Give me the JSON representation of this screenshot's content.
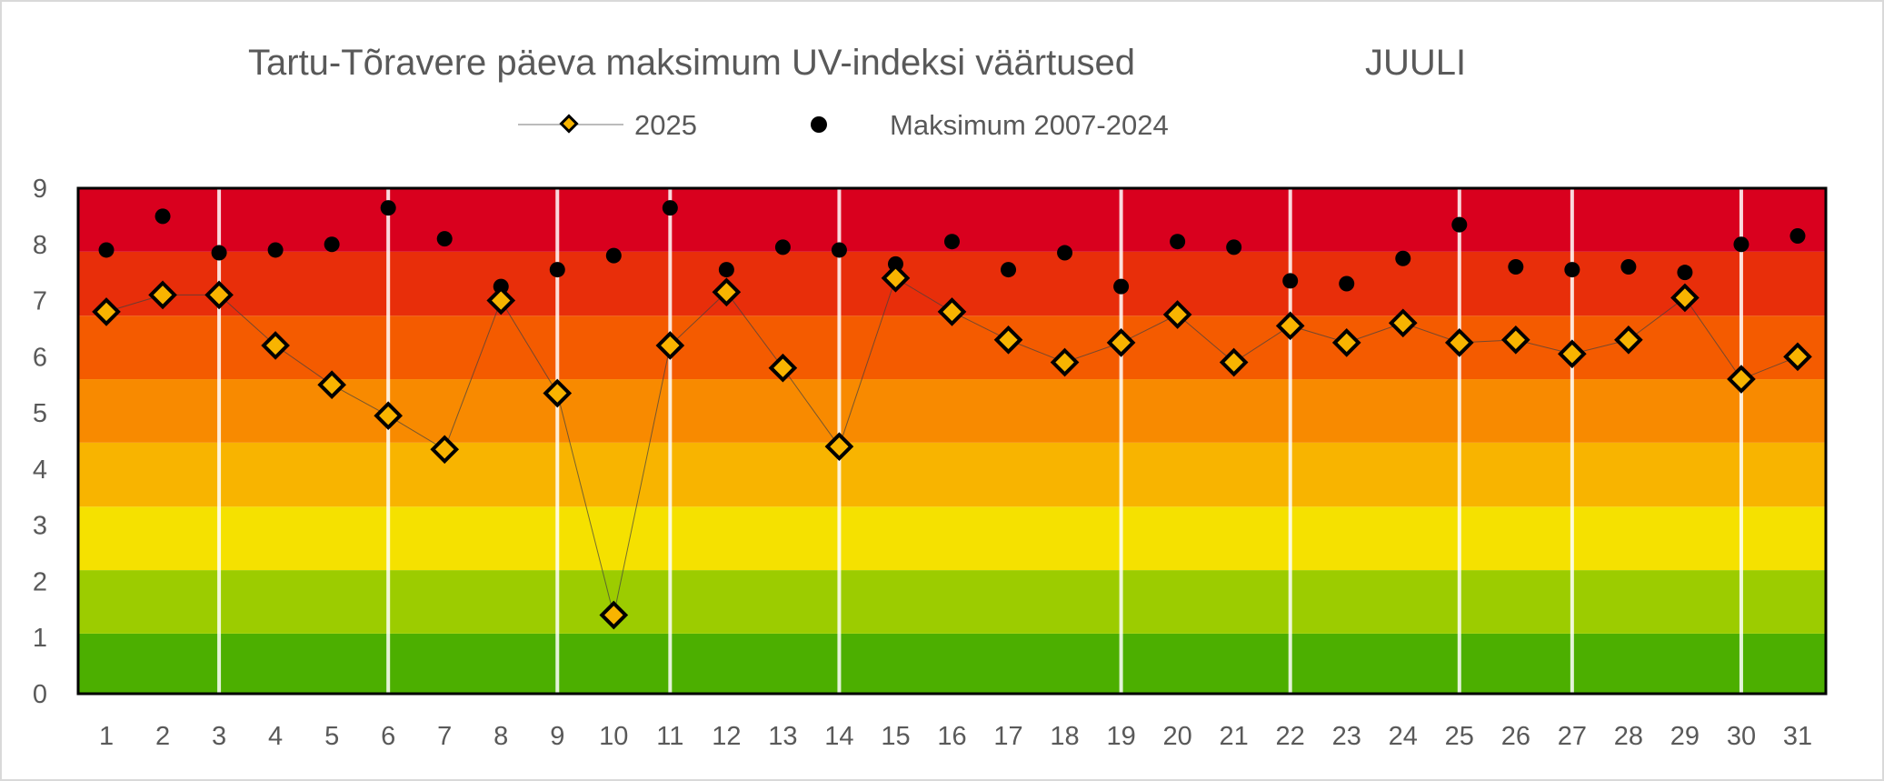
{
  "chart_data": {
    "type": "line",
    "title": "Tartu-Tõravere päeva maksimum UV-indeksi väärtused",
    "title_month": "JUULI",
    "xlabel": "",
    "ylabel": "",
    "x": [
      1,
      2,
      3,
      4,
      5,
      6,
      7,
      8,
      9,
      10,
      11,
      12,
      13,
      14,
      15,
      16,
      17,
      18,
      19,
      20,
      21,
      22,
      23,
      24,
      25,
      26,
      27,
      28,
      29,
      30,
      31
    ],
    "ylim": [
      0,
      9
    ],
    "yticks": [
      0,
      1,
      2,
      3,
      4,
      5,
      6,
      7,
      8,
      9
    ],
    "grid": false,
    "legend_position": "top-center",
    "background_bands": [
      {
        "from": 0,
        "to": 1.07,
        "color": "#4caf00"
      },
      {
        "from": 1.07,
        "to": 2.2,
        "color": "#9ccc00"
      },
      {
        "from": 2.2,
        "to": 3.33,
        "color": "#f5e100"
      },
      {
        "from": 3.33,
        "to": 4.47,
        "color": "#f8b400"
      },
      {
        "from": 4.47,
        "to": 5.6,
        "color": "#f88a00"
      },
      {
        "from": 5.6,
        "to": 6.73,
        "color": "#f45b00"
      },
      {
        "from": 6.73,
        "to": 7.87,
        "color": "#e82e0a"
      },
      {
        "from": 7.87,
        "to": 9,
        "color": "#d9001e"
      }
    ],
    "week_separators_after_day": [
      2.5,
      5.5,
      8.5,
      10.5,
      13.5,
      18.5,
      21.5,
      24.5,
      26.5,
      29.5
    ],
    "series": [
      {
        "name": "2025",
        "marker": "diamond",
        "color": "#f8b400",
        "values": [
          6.8,
          7.1,
          7.1,
          6.2,
          5.5,
          4.95,
          4.35,
          7.0,
          5.35,
          1.4,
          6.2,
          7.15,
          5.8,
          4.4,
          7.4,
          6.8,
          6.3,
          5.9,
          6.25,
          6.75,
          5.9,
          6.55,
          6.25,
          6.6,
          6.25,
          6.3,
          6.05,
          6.3,
          7.05,
          5.6,
          6.0
        ]
      },
      {
        "name": "Maksimum  2007-2024",
        "marker": "circle",
        "color": "#000000",
        "values": [
          7.9,
          8.5,
          7.85,
          7.9,
          8.0,
          8.65,
          8.1,
          7.25,
          7.55,
          7.8,
          8.65,
          7.55,
          7.95,
          7.9,
          7.65,
          8.05,
          7.55,
          7.85,
          7.25,
          8.05,
          7.95,
          7.35,
          7.3,
          7.75,
          8.35,
          7.6,
          7.55,
          7.6,
          7.5,
          8.0,
          8.15
        ]
      }
    ]
  }
}
